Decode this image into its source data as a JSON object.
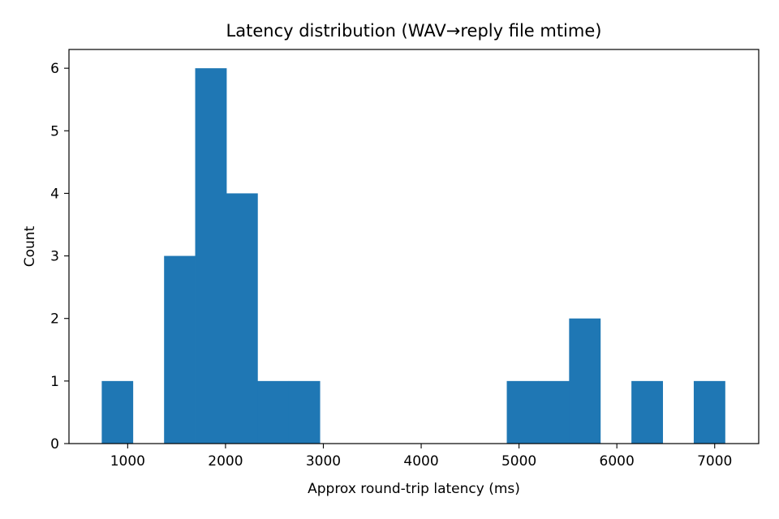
{
  "chart_data": {
    "type": "histogram",
    "title": "Latency distribution (WAV→reply file mtime)",
    "xlabel": "Approx round-trip latency (ms)",
    "ylabel": "Count",
    "xlim": [
      400,
      7450
    ],
    "ylim": [
      0,
      6.3
    ],
    "x_ticks": [
      1000,
      2000,
      3000,
      4000,
      5000,
      6000,
      7000
    ],
    "y_ticks": [
      0,
      1,
      2,
      3,
      4,
      5,
      6
    ],
    "bar_color": "#1f77b4",
    "grid": false,
    "bins": [
      {
        "start": 735,
        "end": 1053,
        "count": 1
      },
      {
        "start": 1053,
        "end": 1372,
        "count": 0
      },
      {
        "start": 1372,
        "end": 1690,
        "count": 3
      },
      {
        "start": 1690,
        "end": 2009,
        "count": 6
      },
      {
        "start": 2009,
        "end": 2327,
        "count": 4
      },
      {
        "start": 2327,
        "end": 2646,
        "count": 1
      },
      {
        "start": 2646,
        "end": 2964,
        "count": 1
      },
      {
        "start": 2964,
        "end": 3283,
        "count": 0
      },
      {
        "start": 3283,
        "end": 3601,
        "count": 0
      },
      {
        "start": 3601,
        "end": 3920,
        "count": 0
      },
      {
        "start": 3920,
        "end": 4238,
        "count": 0
      },
      {
        "start": 4238,
        "end": 4557,
        "count": 0
      },
      {
        "start": 4557,
        "end": 4875,
        "count": 0
      },
      {
        "start": 4875,
        "end": 5194,
        "count": 1
      },
      {
        "start": 5194,
        "end": 5512,
        "count": 1
      },
      {
        "start": 5512,
        "end": 5831,
        "count": 2
      },
      {
        "start": 5831,
        "end": 6149,
        "count": 0
      },
      {
        "start": 6149,
        "end": 6468,
        "count": 1
      },
      {
        "start": 6468,
        "end": 6786,
        "count": 0
      },
      {
        "start": 6786,
        "end": 7105,
        "count": 1
      }
    ]
  }
}
